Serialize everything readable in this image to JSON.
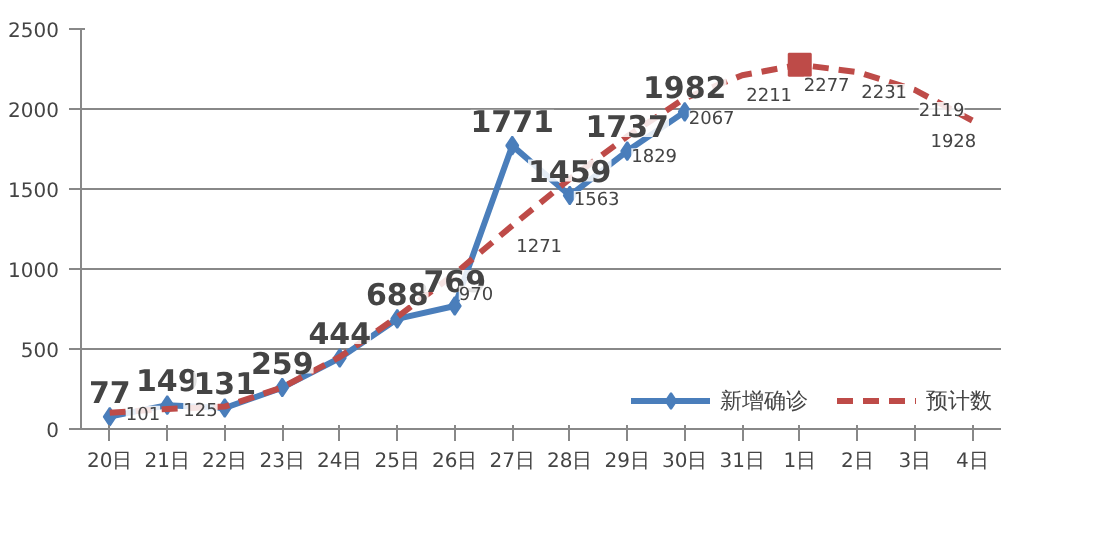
{
  "chart_data": {
    "type": "line",
    "categories": [
      "20日",
      "21日",
      "22日",
      "23日",
      "24日",
      "25日",
      "26日",
      "27日",
      "28日",
      "29日",
      "30日",
      "31日",
      "1日",
      "2日",
      "3日",
      "4日"
    ],
    "series": [
      {
        "name": "新增确诊",
        "color": "#4a7ebb",
        "marker": "diamond",
        "line_style": "solid",
        "values": [
          77,
          149,
          131,
          259,
          444,
          688,
          769,
          1771,
          1459,
          1737,
          1982,
          null,
          null,
          null,
          null,
          null
        ],
        "value_labels": [
          "77",
          "149",
          "131",
          "259",
          "444",
          "688",
          "769",
          "1771",
          "1459",
          "1737",
          "1982",
          null,
          null,
          null,
          null,
          null
        ]
      },
      {
        "name": "预计数",
        "color": "#be4b48",
        "marker": "none",
        "line_style": "dashed",
        "values": [
          101,
          125,
          140,
          260,
          450,
          700,
          970,
          1271,
          1563,
          1829,
          2067,
          2211,
          2277,
          2231,
          2119,
          1928
        ],
        "value_labels": [
          "101",
          "125",
          null,
          null,
          null,
          null,
          "970",
          "1271",
          "1563",
          "1829",
          "2067",
          "2211",
          "2277",
          "2231",
          "2119",
          "1928"
        ]
      },
      {
        "type": "scatter",
        "color": "#be4b48",
        "marker": "square",
        "values": [
          null,
          null,
          null,
          null,
          null,
          null,
          null,
          null,
          null,
          null,
          null,
          null,
          2277,
          null,
          null,
          null
        ]
      }
    ],
    "ylim": [
      0,
      2500
    ],
    "yticks": [
      0,
      500,
      1000,
      1500,
      2000,
      2500
    ],
    "grid": "y",
    "legend": "bottom right"
  }
}
